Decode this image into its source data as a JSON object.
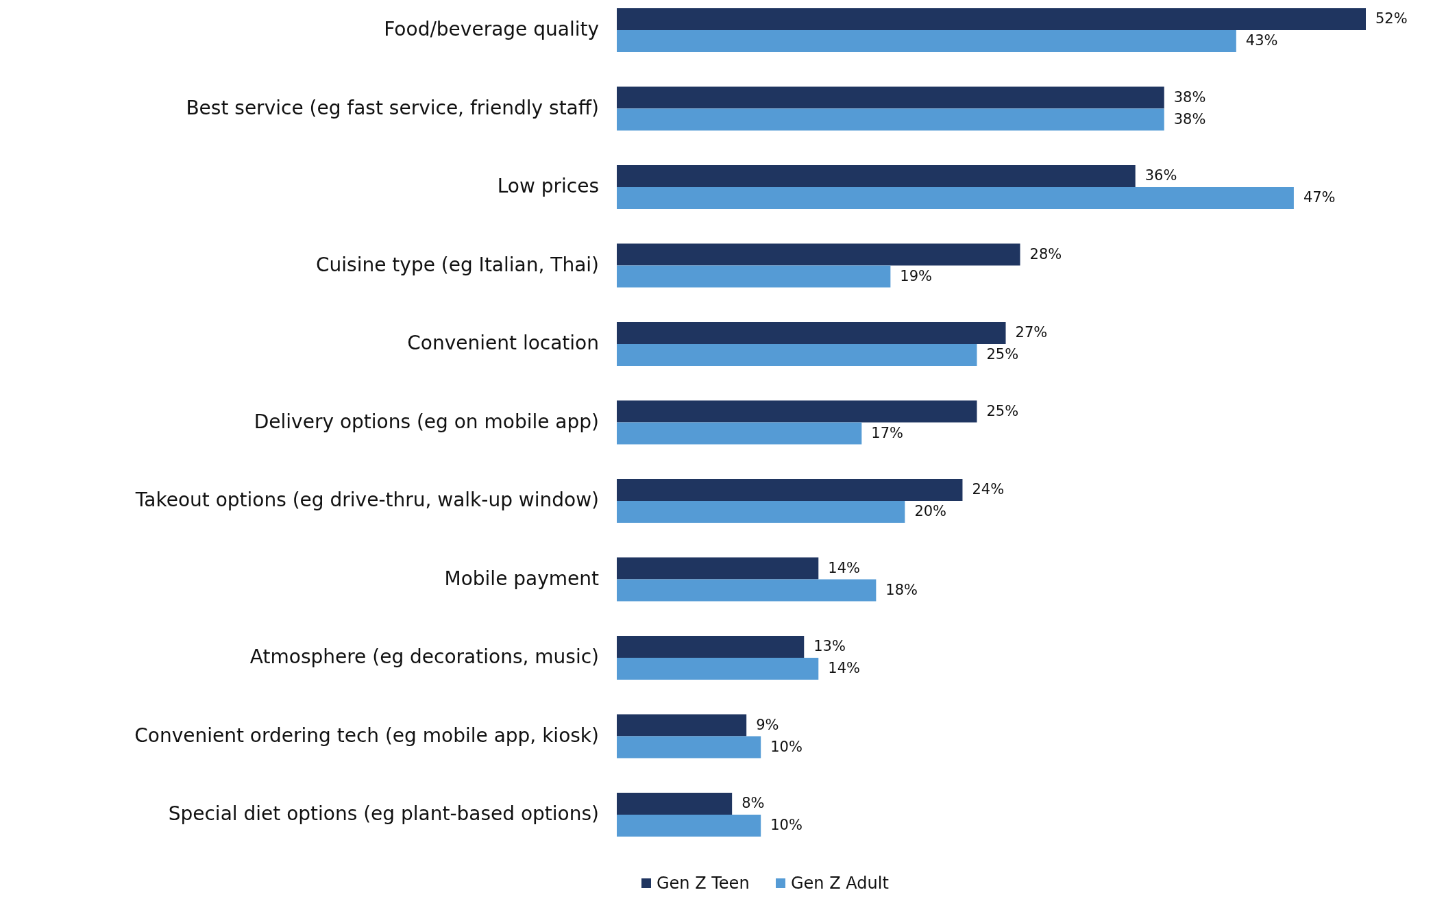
{
  "chart_data": {
    "type": "bar",
    "orientation": "horizontal",
    "categories": [
      "Food/beverage quality",
      "Best service (eg fast service, friendly staff)",
      "Low prices",
      "Cuisine type (eg Italian, Thai)",
      "Convenient location",
      "Delivery options (eg on mobile app)",
      "Takeout options (eg drive-thru, walk-up window)",
      "Mobile payment",
      "Atmosphere (eg decorations, music)",
      "Convenient ordering tech (eg mobile app, kiosk)",
      "Special diet options (eg plant-based options)"
    ],
    "series": [
      {
        "name": "Gen Z Teen",
        "color": "#1f3560",
        "values": [
          52,
          38,
          36,
          28,
          27,
          25,
          24,
          14,
          13,
          9,
          8
        ],
        "value_labels": [
          "52%",
          "38%",
          "36%",
          "28%",
          "27%",
          "25%",
          "24%",
          "14%",
          "13%",
          "9%",
          "8%"
        ]
      },
      {
        "name": "Gen Z Adult",
        "color": "#559bd5",
        "values": [
          43,
          38,
          47,
          19,
          25,
          17,
          20,
          18,
          14,
          10,
          10
        ],
        "value_labels": [
          "43%",
          "38%",
          "47%",
          "19%",
          "25%",
          "17%",
          "20%",
          "18%",
          "14%",
          "10%",
          "10%"
        ]
      }
    ],
    "legend": "bottom",
    "grid": false
  }
}
